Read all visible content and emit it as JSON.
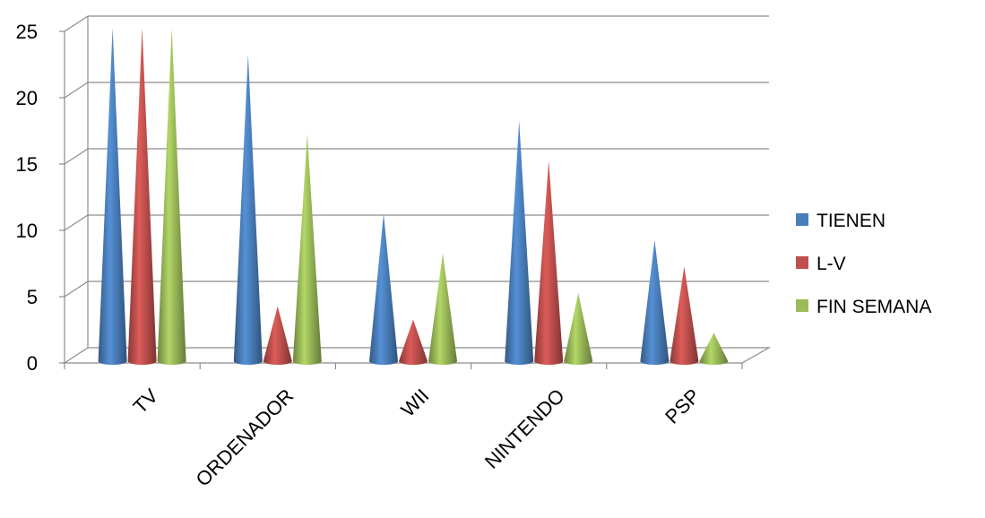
{
  "chart_data": {
    "type": "bar",
    "style": "3d-cone",
    "categories": [
      "TV",
      "ORDENADOR",
      "WII",
      "NINTENDO",
      "PSP"
    ],
    "series": [
      {
        "name": "TIENEN",
        "values": [
          25,
          23,
          11,
          18,
          9
        ],
        "color": "#4a7ebb"
      },
      {
        "name": "L-V",
        "values": [
          25,
          4,
          3,
          15,
          7
        ],
        "color": "#c0504d"
      },
      {
        "name": "FIN SEMANA",
        "values": [
          25,
          17,
          8,
          5,
          2
        ],
        "color": "#9bbb59"
      }
    ],
    "yticks": [
      "0",
      "5",
      "10",
      "15",
      "20",
      "25"
    ],
    "ylim": [
      0,
      25
    ],
    "title": "",
    "xlabel": "",
    "ylabel": "",
    "grid": true,
    "legend": "right"
  }
}
